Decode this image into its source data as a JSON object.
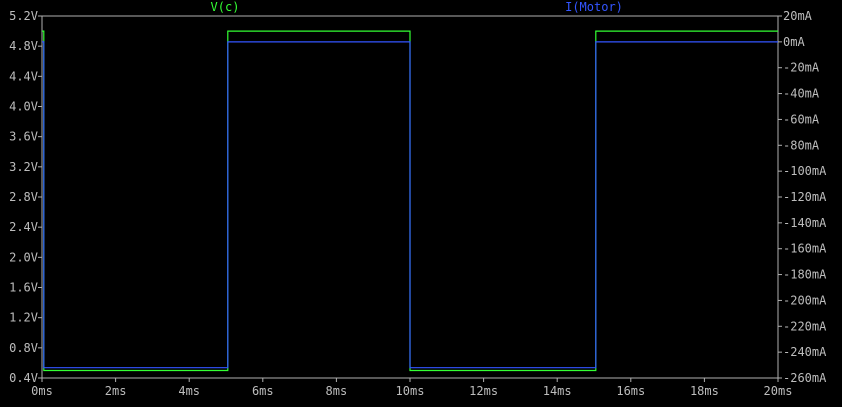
{
  "chart_data": {
    "type": "line",
    "grid": false,
    "x_axis": {
      "unit": "ms",
      "range": [
        0,
        20
      ],
      "tick_labels": [
        "0ms",
        "2ms",
        "4ms",
        "6ms",
        "8ms",
        "10ms",
        "12ms",
        "14ms",
        "16ms",
        "18ms",
        "20ms"
      ]
    },
    "y_axis_left": {
      "unit": "V",
      "range": [
        0.4,
        5.2
      ],
      "tick_labels": [
        "0.4V",
        "0.8V",
        "1.2V",
        "1.6V",
        "2.0V",
        "2.4V",
        "2.8V",
        "3.2V",
        "3.6V",
        "4.0V",
        "4.4V",
        "4.8V",
        "5.2V"
      ]
    },
    "y_axis_right": {
      "unit": "mA",
      "range": [
        -260,
        20
      ],
      "tick_labels": [
        "20mA",
        "0mA",
        "-20mA",
        "-40mA",
        "-60mA",
        "-80mA",
        "-100mA",
        "-120mA",
        "-140mA",
        "-160mA",
        "-180mA",
        "-200mA",
        "-220mA",
        "-240mA",
        "-260mA"
      ]
    },
    "series": [
      {
        "name": "V(c)",
        "axis": "left",
        "color": "#33ff33",
        "x": [
          0,
          0.05,
          0.05,
          5.05,
          5.05,
          10.0,
          10.0,
          15.05,
          15.05,
          20
        ],
        "y": [
          5.0,
          5.0,
          0.5,
          0.5,
          5.0,
          5.0,
          0.5,
          0.5,
          5.0,
          5.0
        ]
      },
      {
        "name": "I(Motor)",
        "axis": "right",
        "color": "#3355ff",
        "x": [
          0,
          0.05,
          0.05,
          5.05,
          5.05,
          10.0,
          10.0,
          15.05,
          15.05,
          20
        ],
        "y": [
          0,
          0,
          -252,
          -252,
          0,
          0,
          -252,
          -252,
          0,
          0
        ]
      }
    ]
  }
}
